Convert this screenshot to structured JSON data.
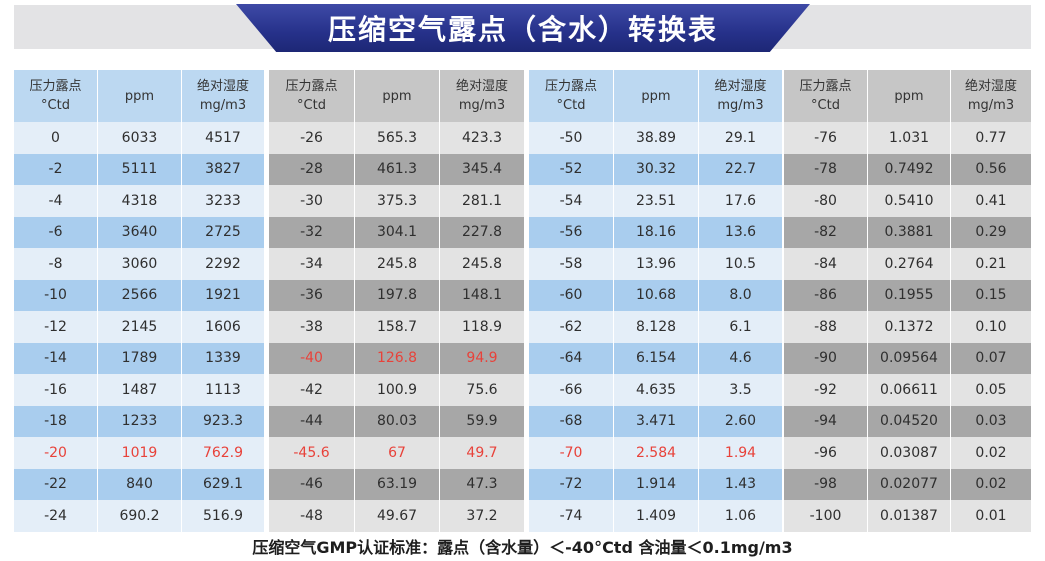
{
  "title": "压缩空气露点（含水）转换表",
  "headers": {
    "dew_l1": "压力露点",
    "dew_l2": "°Ctd",
    "ppm": "ppm",
    "abs_l1": "绝对湿度",
    "abs_l2": "mg/m3"
  },
  "colors": {
    "banner": "#26318a",
    "blue_band": "#a9cdee",
    "light_band": "#e4eef8",
    "gray_band": "#a7a7a7",
    "gray_light": "#e3e3e3",
    "highlight_red": "#e8423a"
  },
  "tables": [
    {
      "rows": [
        [
          "0",
          "6033",
          "4517"
        ],
        [
          "-2",
          "5111",
          "3827"
        ],
        [
          "-4",
          "4318",
          "3233"
        ],
        [
          "-6",
          "3640",
          "2725"
        ],
        [
          "-8",
          "3060",
          "2292"
        ],
        [
          "-10",
          "2566",
          "1921"
        ],
        [
          "-12",
          "2145",
          "1606"
        ],
        [
          "-14",
          "1789",
          "1339"
        ],
        [
          "-16",
          "1487",
          "1113"
        ],
        [
          "-18",
          "1233",
          "923.3"
        ],
        [
          "-20",
          "1019",
          "762.9"
        ],
        [
          "-22",
          "840",
          "629.1"
        ],
        [
          "-24",
          "690.2",
          "516.9"
        ]
      ],
      "highlight_row": 10
    },
    {
      "rows": [
        [
          "-26",
          "565.3",
          "423.3"
        ],
        [
          "-28",
          "461.3",
          "345.4"
        ],
        [
          "-30",
          "375.3",
          "281.1"
        ],
        [
          "-32",
          "304.1",
          "227.8"
        ],
        [
          "-34",
          "245.8",
          "245.8"
        ],
        [
          "-36",
          "197.8",
          "148.1"
        ],
        [
          "-38",
          "158.7",
          "118.9"
        ],
        [
          "-40",
          "126.8",
          "94.9"
        ],
        [
          "-42",
          "100.9",
          "75.6"
        ],
        [
          "-44",
          "80.03",
          "59.9"
        ],
        [
          "-45.6",
          "67",
          "49.7"
        ],
        [
          "-46",
          "63.19",
          "47.3"
        ],
        [
          "-48",
          "49.67",
          "37.2"
        ]
      ],
      "highlight_rows": [
        7,
        10
      ]
    },
    {
      "rows": [
        [
          "-50",
          "38.89",
          "29.1"
        ],
        [
          "-52",
          "30.32",
          "22.7"
        ],
        [
          "-54",
          "23.51",
          "17.6"
        ],
        [
          "-56",
          "18.16",
          "13.6"
        ],
        [
          "-58",
          "13.96",
          "10.5"
        ],
        [
          "-60",
          "10.68",
          "8.0"
        ],
        [
          "-62",
          "8.128",
          "6.1"
        ],
        [
          "-64",
          "6.154",
          "4.6"
        ],
        [
          "-66",
          "4.635",
          "3.5"
        ],
        [
          "-68",
          "3.471",
          "2.60"
        ],
        [
          "-70",
          "2.584",
          "1.94"
        ],
        [
          "-72",
          "1.914",
          "1.43"
        ],
        [
          "-74",
          "1.409",
          "1.06"
        ]
      ],
      "highlight_row": 10
    },
    {
      "rows": [
        [
          "-76",
          "1.031",
          "0.77"
        ],
        [
          "-78",
          "0.7492",
          "0.56"
        ],
        [
          "-80",
          "0.5410",
          "0.41"
        ],
        [
          "-82",
          "0.3881",
          "0.29"
        ],
        [
          "-84",
          "0.2764",
          "0.21"
        ],
        [
          "-86",
          "0.1955",
          "0.15"
        ],
        [
          "-88",
          "0.1372",
          "0.10"
        ],
        [
          "-90",
          "0.09564",
          "0.07"
        ],
        [
          "-92",
          "0.06611",
          "0.05"
        ],
        [
          "-94",
          "0.04520",
          "0.03"
        ],
        [
          "-96",
          "0.03087",
          "0.02"
        ],
        [
          "-98",
          "0.02077",
          "0.02"
        ],
        [
          "-100",
          "0.01387",
          "0.01"
        ]
      ]
    }
  ],
  "footer": "压缩空气GMP认证标准：露点（含水量）＜-40°Ctd  含油量＜0.1mg/m3"
}
